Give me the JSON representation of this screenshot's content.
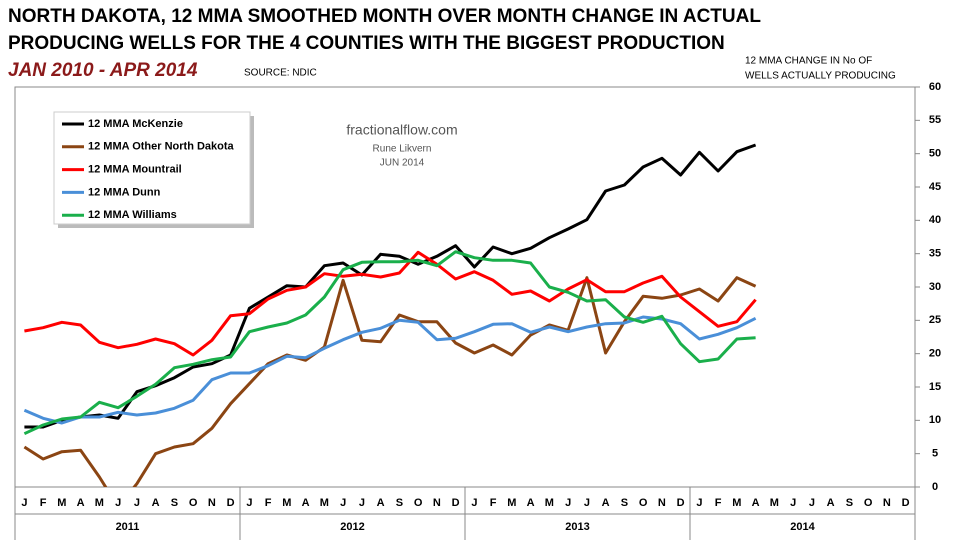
{
  "chart_data": {
    "type": "line",
    "title": [
      "NORTH DAKOTA, 12 MMA SMOOTHED MONTH OVER MONTH CHANGE IN ACTUAL",
      "PRODUCING WELLS FOR THE 4 COUNTIES WITH THE BIGGEST PRODUCTION"
    ],
    "subtitle": "JAN 2010 - APR 2014",
    "source": "SOURCE: NDIC",
    "y_axis_label": [
      "12 MMA CHANGE IN No OF",
      "WELLS ACTUALLY PRODUCING"
    ],
    "watermark": [
      "fractionalflow.com",
      "Rune Likvern",
      "JUN 2014"
    ],
    "categories": [
      "J",
      "F",
      "M",
      "A",
      "M",
      "J",
      "J",
      "A",
      "S",
      "O",
      "N",
      "D",
      "J",
      "F",
      "M",
      "A",
      "M",
      "J",
      "J",
      "A",
      "S",
      "O",
      "N",
      "D",
      "J",
      "F",
      "M",
      "A",
      "M",
      "J",
      "J",
      "A",
      "S",
      "O",
      "N",
      "D",
      "J",
      "F",
      "M",
      "A",
      "M",
      "J",
      "J",
      "A",
      "S",
      "O",
      "N",
      "D"
    ],
    "years": [
      "2011",
      "2012",
      "2013",
      "2014"
    ],
    "ylim": [
      0,
      60
    ],
    "yticks": [
      0,
      5,
      10,
      15,
      20,
      25,
      30,
      35,
      40,
      45,
      50,
      55,
      60
    ],
    "y_axis_side": "right",
    "grid": false,
    "series": [
      {
        "name": "12 MMA McKenzie",
        "color": "#000000",
        "values": [
          9,
          9,
          10,
          10.5,
          10.8,
          10.3,
          14.3,
          15.2,
          16.4,
          18,
          18.5,
          19.8,
          26.8,
          28.5,
          30.2,
          30,
          33.2,
          33.6,
          31.8,
          34.9,
          34.6,
          33.4,
          34.6,
          36.2,
          33,
          36,
          35,
          35.8,
          37.4,
          38.7,
          40.1,
          44.4,
          45.3,
          48,
          49.3,
          46.8,
          50.2,
          47.4,
          50.3,
          51.3,
          null,
          null,
          null,
          null,
          null,
          null,
          null,
          null
        ]
      },
      {
        "name": "12 MMA Other North Dakota",
        "color": "#8b4513",
        "values": [
          6,
          4.2,
          5.3,
          5.5,
          1.5,
          -3,
          0.5,
          5,
          6,
          6.5,
          8.8,
          12.5,
          15.5,
          18.5,
          19.8,
          19,
          21,
          31,
          22,
          21.8,
          25.8,
          24.8,
          24.8,
          21.6,
          20.1,
          21.3,
          19.8,
          22.8,
          24.3,
          23.5,
          31.4,
          20.1,
          24.8,
          28.6,
          28.3,
          28.8,
          29.7,
          27.9,
          31.4,
          30.1,
          null,
          null,
          null,
          null,
          null,
          null,
          null,
          null
        ]
      },
      {
        "name": "12 MMA Mountrail",
        "color": "#ff0000",
        "values": [
          23.4,
          23.9,
          24.7,
          24.3,
          21.7,
          20.9,
          21.4,
          22.2,
          21.5,
          19.8,
          22,
          25.7,
          26,
          28.2,
          29.5,
          30,
          32,
          31.6,
          31.9,
          31.5,
          32.1,
          35.2,
          33.4,
          31.2,
          32.3,
          31,
          28.9,
          29.4,
          27.9,
          29.7,
          31.1,
          29.3,
          29.3,
          30.6,
          31.6,
          28.5,
          26.3,
          24.1,
          24.8,
          28.1,
          null,
          null,
          null,
          null,
          null,
          null,
          null,
          null
        ]
      },
      {
        "name": "12 MMA Dunn",
        "color": "#4a8fd8",
        "values": [
          11.5,
          10.3,
          9.6,
          10.5,
          10.5,
          11.2,
          10.8,
          11.1,
          11.8,
          13,
          16.1,
          17.1,
          17.1,
          18.2,
          19.6,
          19.4,
          20.8,
          22.1,
          23.2,
          23.8,
          25,
          24.7,
          22.1,
          22.3,
          23.3,
          24.4,
          24.5,
          23.2,
          24,
          23.3,
          24,
          24.5,
          24.6,
          25.5,
          25.2,
          24.5,
          22.2,
          22.9,
          23.9,
          25.3,
          null,
          null,
          null,
          null,
          null,
          null,
          null,
          null
        ]
      },
      {
        "name": "12 MMA Williams",
        "color": "#1aaf4b",
        "values": [
          8,
          9.3,
          10.2,
          10.5,
          12.7,
          11.9,
          13.6,
          15.4,
          17.9,
          18.4,
          19.1,
          19.5,
          23.3,
          24,
          24.6,
          25.8,
          28.5,
          32.6,
          33.7,
          33.8,
          33.8,
          34,
          33.2,
          35.3,
          34.4,
          34,
          34,
          33.6,
          30,
          29.2,
          27.9,
          28.1,
          25.5,
          24.7,
          25.6,
          21.5,
          18.8,
          19.2,
          22.2,
          22.4,
          null,
          null,
          null,
          null,
          null,
          null,
          null,
          null
        ]
      }
    ]
  }
}
